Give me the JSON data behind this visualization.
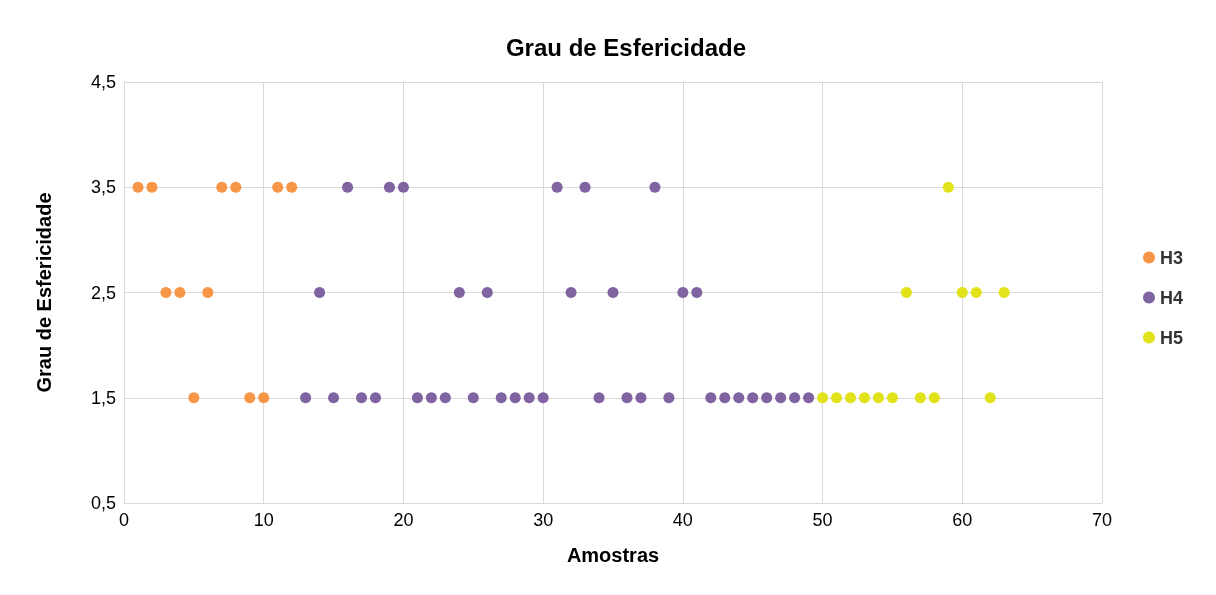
{
  "chart_data": {
    "type": "scatter",
    "title": "Grau de Esfericidade",
    "xlabel": "Amostras",
    "ylabel": "Grau de Esfericidade",
    "xlim": [
      0,
      70
    ],
    "xticks": [
      0,
      10,
      20,
      30,
      40,
      50,
      60,
      70
    ],
    "ylim": [
      0.5,
      4.5
    ],
    "yticks": [
      {
        "value": 0.5,
        "label": "0,5"
      },
      {
        "value": 1.5,
        "label": "1,5"
      },
      {
        "value": 2.5,
        "label": "2,5"
      },
      {
        "value": 3.5,
        "label": "3,5"
      },
      {
        "value": 4.5,
        "label": "4,5"
      }
    ],
    "grid": true,
    "legend": "right",
    "marker": "circle",
    "series": [
      {
        "name": "H3",
        "color": "#f79646",
        "x": [
          1,
          2,
          3,
          4,
          5,
          6,
          7,
          8,
          9,
          10,
          11,
          12
        ],
        "values": [
          3.5,
          3.5,
          2.5,
          2.5,
          1.5,
          2.5,
          3.5,
          3.5,
          1.5,
          1.5,
          3.5,
          3.5
        ]
      },
      {
        "name": "H4",
        "color": "#8064a2",
        "x": [
          13,
          14,
          15,
          16,
          17,
          18,
          19,
          20,
          21,
          22,
          23,
          24,
          25,
          26,
          27,
          28,
          29,
          30,
          31,
          32,
          33,
          34,
          35,
          36,
          37,
          38,
          39,
          40,
          41,
          42,
          43,
          44,
          45,
          46,
          47,
          48,
          49
        ],
        "values": [
          1.5,
          2.5,
          1.5,
          3.5,
          1.5,
          1.5,
          3.5,
          3.5,
          1.5,
          1.5,
          1.5,
          2.5,
          1.5,
          2.5,
          1.5,
          1.5,
          1.5,
          1.5,
          3.5,
          2.5,
          3.5,
          1.5,
          2.5,
          1.5,
          1.5,
          3.5,
          1.5,
          2.5,
          2.5,
          1.5,
          1.5,
          1.5,
          1.5,
          1.5,
          1.5,
          1.5,
          1.5
        ]
      },
      {
        "name": "H5",
        "color": "#e2e21a",
        "x": [
          50,
          51,
          52,
          53,
          54,
          55,
          56,
          57,
          58,
          59,
          60,
          61,
          62,
          63
        ],
        "values": [
          1.5,
          1.5,
          1.5,
          1.5,
          1.5,
          1.5,
          2.5,
          1.5,
          1.5,
          3.5,
          2.5,
          2.5,
          1.5,
          2.5
        ]
      }
    ]
  }
}
